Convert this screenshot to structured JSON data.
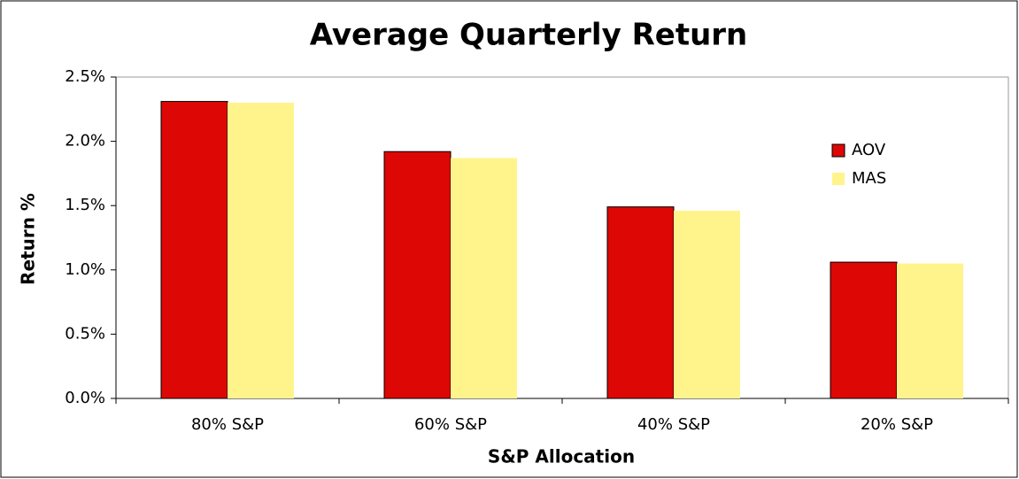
{
  "chart_data": {
    "type": "bar",
    "title": "Average Quarterly Return",
    "x_label": "S&P Allocation",
    "y_label": "Return %",
    "categories": [
      "80% S&P",
      "60% S&P",
      "40% S&P",
      "20% S&P"
    ],
    "series": [
      {
        "name": "AOV",
        "color": "#dd0806",
        "values": [
          2.31,
          1.92,
          1.49,
          1.06
        ]
      },
      {
        "name": "MAS",
        "color": "#fff48c",
        "values": [
          2.3,
          1.87,
          1.46,
          1.05
        ]
      }
    ],
    "ylim": [
      0,
      2.5
    ],
    "yticks": [
      {
        "value": 0,
        "label": "0.0%"
      },
      {
        "value": 0.5,
        "label": "0.5%"
      },
      {
        "value": 1.0,
        "label": "1.0%"
      },
      {
        "value": 1.5,
        "label": "1.5%"
      },
      {
        "value": 2.0,
        "label": "2.0%"
      },
      {
        "value": 2.5,
        "label": "2.5%"
      }
    ],
    "grid": false,
    "legend": "right"
  }
}
